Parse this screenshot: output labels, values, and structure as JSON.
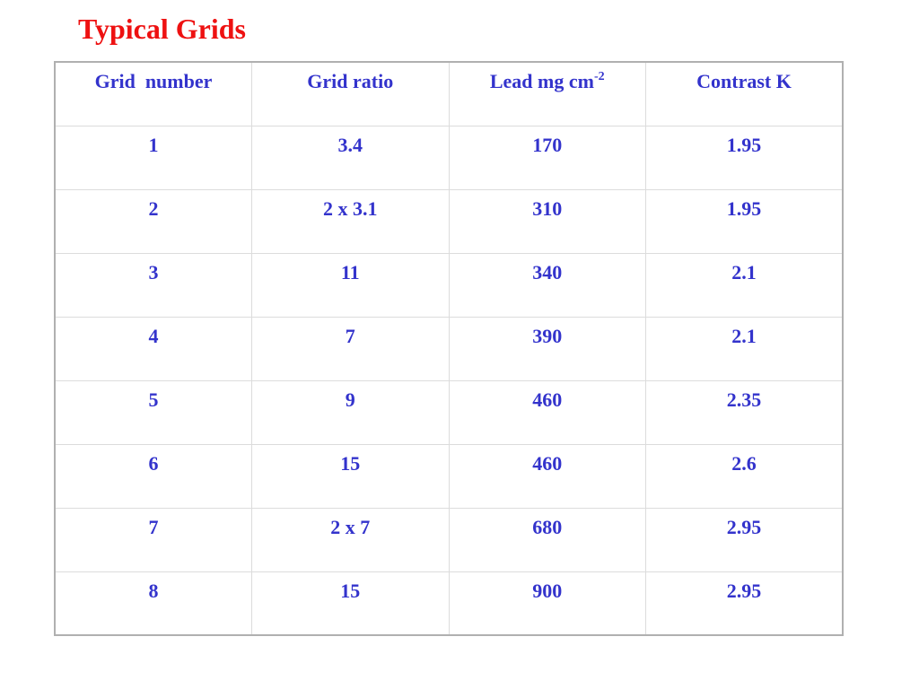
{
  "title": "Typical Grids",
  "colors": {
    "title": "#ee1111",
    "table_text": "#3333cc",
    "grid_line": "#dcdcdc"
  },
  "table": {
    "headers": {
      "grid_number": "Grid  number",
      "grid_ratio": "Grid ratio",
      "lead": "Lead mg cm",
      "lead_exponent": "-2",
      "contrast": "Contrast K"
    },
    "rows": [
      {
        "grid_number": "1",
        "grid_ratio": "3.4",
        "lead": "170",
        "contrast": "1.95"
      },
      {
        "grid_number": "2",
        "grid_ratio": "2 x 3.1",
        "lead": "310",
        "contrast": "1.95"
      },
      {
        "grid_number": "3",
        "grid_ratio": "11",
        "lead": "340",
        "contrast": "2.1"
      },
      {
        "grid_number": "4",
        "grid_ratio": "7",
        "lead": "390",
        "contrast": "2.1"
      },
      {
        "grid_number": "5",
        "grid_ratio": "9",
        "lead": "460",
        "contrast": "2.35"
      },
      {
        "grid_number": "6",
        "grid_ratio": "15",
        "lead": "460",
        "contrast": "2.6"
      },
      {
        "grid_number": "7",
        "grid_ratio": "2 x 7",
        "lead": "680",
        "contrast": "2.95"
      },
      {
        "grid_number": "8",
        "grid_ratio": "15",
        "lead": "900",
        "contrast": "2.95"
      }
    ]
  }
}
